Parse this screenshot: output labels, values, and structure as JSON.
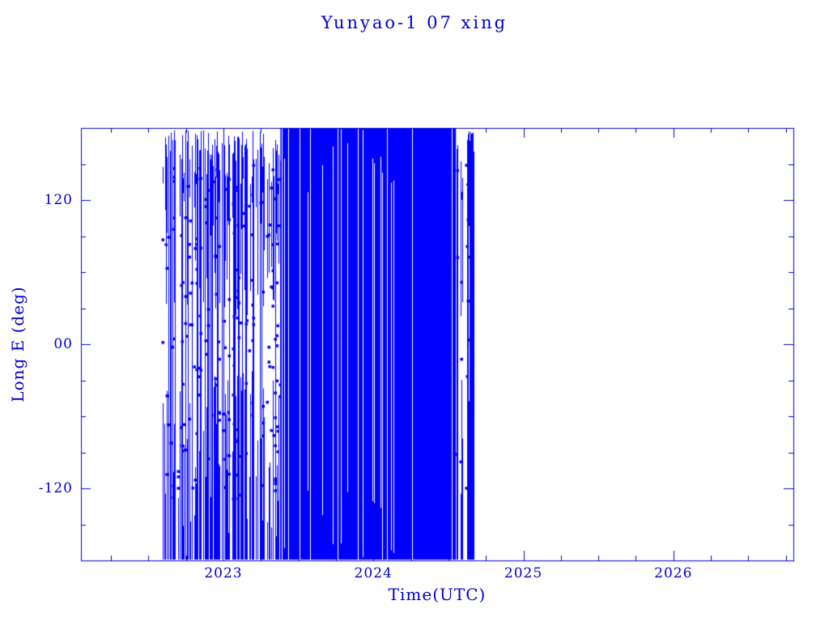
{
  "chart_data": {
    "type": "scatter",
    "title": "Yunyao-1 07 xing",
    "xlabel": "Time(UTC)",
    "ylabel": "Long E (deg)",
    "xlim": [
      2022.05,
      2026.8
    ],
    "ylim": [
      -180,
      180
    ],
    "x_ticks": [
      {
        "value": 2023,
        "label": "2023"
      },
      {
        "value": 2024,
        "label": "2024"
      },
      {
        "value": 2025,
        "label": "2025"
      },
      {
        "value": 2026,
        "label": "2026"
      }
    ],
    "x_minor_tick_interval": 0.25,
    "y_ticks": [
      {
        "value": 120,
        "label": "120"
      },
      {
        "value": 0,
        "label": "00"
      },
      {
        "value": -120,
        "label": "-120"
      }
    ],
    "y_minor_tick_interval": 30,
    "grid": false,
    "legend": false,
    "background": "#ffffff",
    "axis_color": "#0000cc",
    "data_color": "#0000ff",
    "series": [
      {
        "name": "longitude crossings",
        "description": "Dense vertical-line ground-track longitude coverage from mid-2022 to mid/late-2024; nearly solid blue block 2023.4-2024.55, sparser striped coverage 2022.6-2023.4, short isolated dense cluster near 2024.65, no data after late 2024.",
        "bands": [
          {
            "x_start": 2022.59,
            "x_end": 2023.38,
            "density": "sparse",
            "y_min": -180,
            "y_max": 178
          },
          {
            "x_start": 2023.38,
            "x_end": 2024.55,
            "density": "solid",
            "y_min": -180,
            "y_max": 180
          },
          {
            "x_start": 2024.55,
            "x_end": 2024.62,
            "density": "very-sparse",
            "y_min": -180,
            "y_max": 170
          },
          {
            "x_start": 2024.62,
            "x_end": 2024.67,
            "density": "dense",
            "y_min": -180,
            "y_max": 178
          }
        ]
      }
    ]
  }
}
